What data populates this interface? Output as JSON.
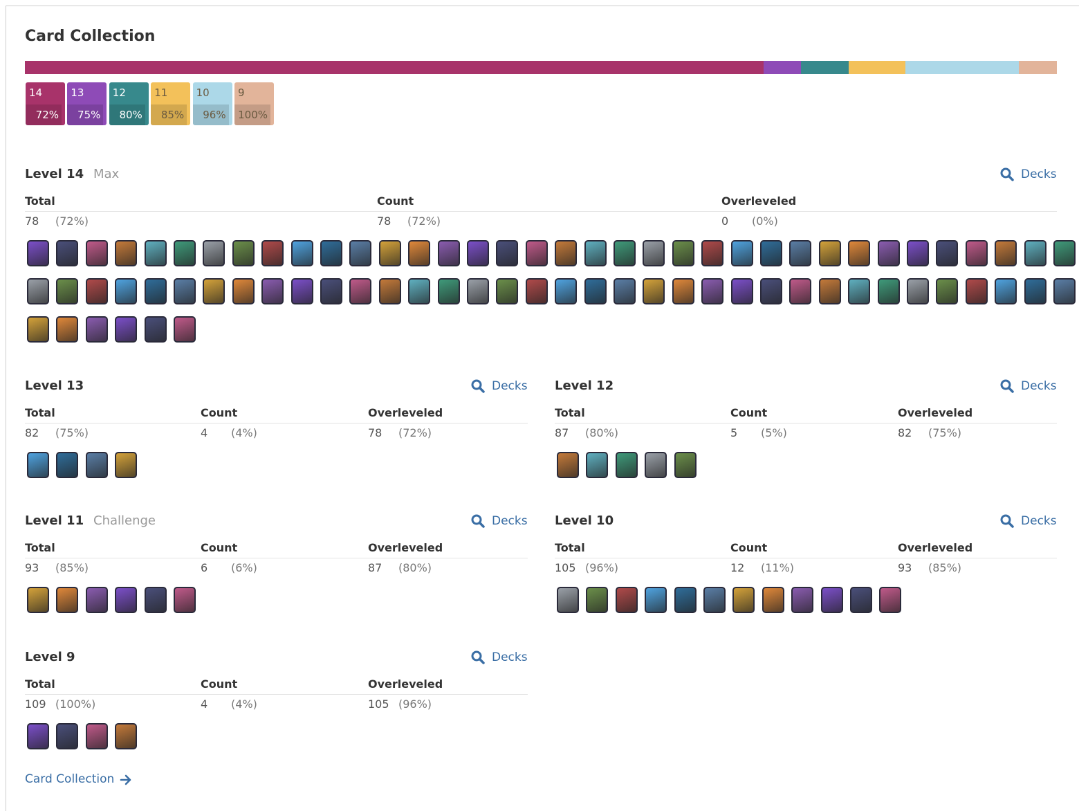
{
  "title": "Card Collection",
  "legend": [
    {
      "level": "14",
      "percent": "72%",
      "color": "#a8336a"
    },
    {
      "level": "13",
      "percent": "75%",
      "color": "#8e4bb7"
    },
    {
      "level": "12",
      "percent": "80%",
      "color": "#37898c"
    },
    {
      "level": "11",
      "percent": "85%",
      "color": "#f3c15a"
    },
    {
      "level": "10",
      "percent": "96%",
      "color": "#acd8e8"
    },
    {
      "level": "9",
      "percent": "100%",
      "color": "#e2b49a"
    }
  ],
  "columns": [
    "Total",
    "Count",
    "Overleveled"
  ],
  "decks_link": "Decks",
  "sections": [
    {
      "title": "Level 14",
      "tag": "Max",
      "total": 78,
      "total_pct": "(72%)",
      "count": 78,
      "count_pct": "(72%)",
      "overleveled": 0,
      "overleveled_pct": "(0%)"
    },
    {
      "title": "Level 13",
      "total": 82,
      "total_pct": "(75%)",
      "count": 4,
      "count_pct": "(4%)",
      "overleveled": 78,
      "overleveled_pct": "(72%)"
    },
    {
      "title": "Level 12",
      "total": 87,
      "total_pct": "(80%)",
      "count": 5,
      "count_pct": "(5%)",
      "overleveled": 82,
      "overleveled_pct": "(75%)"
    },
    {
      "title": "Level 11",
      "tag": "Challenge",
      "total": 93,
      "total_pct": "(85%)",
      "count": 6,
      "count_pct": "(6%)",
      "overleveled": 87,
      "overleveled_pct": "(80%)"
    },
    {
      "title": "Level 10",
      "total": 105,
      "total_pct": "(96%)",
      "count": 12,
      "count_pct": "(11%)",
      "overleveled": 93,
      "overleveled_pct": "(85%)"
    },
    {
      "title": "Level 9",
      "total": 109,
      "total_pct": "(100%)",
      "count": 4,
      "count_pct": "(4%)",
      "overleveled": 105,
      "overleveled_pct": "(96%)"
    }
  ],
  "footer_link": "Card Collection"
}
